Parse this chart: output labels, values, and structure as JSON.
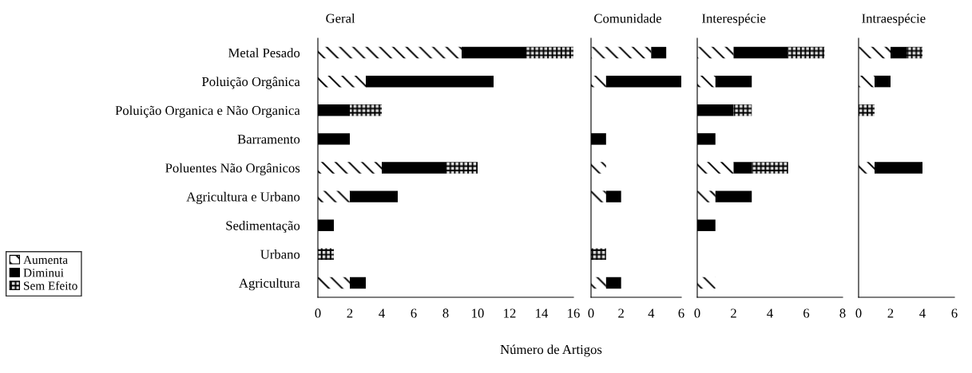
{
  "chart_data": [
    {
      "type": "bar",
      "orientation": "horizontal",
      "stacked": true,
      "title": "Geral",
      "xlabel": "Número de Artigos",
      "legend": "bottom left",
      "categories": [
        "Metal Pesado",
        "Poluição Orgânica",
        "Poluição Organica e Não Organica",
        "Barramento",
        "Poluentes Não Orgânicos",
        "Agricultura e Urbano",
        "Sedimentação",
        "Urbano",
        "Agricultura"
      ],
      "series": [
        {
          "name": "Aumenta",
          "color": "#ffffff",
          "values": [
            9,
            3,
            null,
            null,
            4,
            2,
            null,
            null,
            2
          ]
        },
        {
          "name": "Diminui",
          "color": "#000000",
          "values": [
            4,
            8,
            2,
            2,
            4,
            3,
            1,
            null,
            1
          ]
        },
        {
          "name": "Sem Efeito",
          "color": "#e0e0e0",
          "values": [
            3,
            null,
            2,
            null,
            2,
            null,
            null,
            1,
            null
          ]
        }
      ],
      "xlim": [
        0,
        16
      ],
      "xticks": [
        0,
        2,
        4,
        6,
        8,
        10,
        12,
        14,
        16
      ]
    },
    {
      "type": "bar",
      "orientation": "horizontal",
      "stacked": true,
      "title": "Comunidade",
      "tick_labels": "x",
      "categories": [
        null,
        null,
        null,
        null,
        null,
        null,
        null,
        null,
        null
      ],
      "series": [
        {
          "color": "#ffffff",
          "values": [
            4,
            1,
            null,
            null,
            1,
            1,
            null,
            null,
            1
          ]
        },
        {
          "color": "#000000",
          "values": [
            1,
            5,
            null,
            1,
            null,
            1,
            null,
            null,
            1
          ]
        },
        {
          "color": "#e0e0e0",
          "values": [
            null,
            null,
            null,
            null,
            null,
            null,
            null,
            1,
            null
          ]
        }
      ],
      "xlim": [
        0,
        6
      ],
      "xticks": [
        0,
        2,
        4,
        6
      ]
    },
    {
      "type": "bar",
      "orientation": "horizontal",
      "stacked": true,
      "title": "Interespécie",
      "tick_labels": "x",
      "categories": [
        null,
        null,
        null,
        null,
        null,
        null,
        null,
        null,
        null
      ],
      "series": [
        {
          "color": "#ffffff",
          "values": [
            2,
            1,
            null,
            null,
            2,
            1,
            null,
            null,
            1
          ]
        },
        {
          "color": "#000000",
          "values": [
            3,
            2,
            2,
            1,
            1,
            2,
            1,
            null,
            null
          ]
        },
        {
          "color": "#e0e0e0",
          "values": [
            2,
            null,
            1,
            null,
            2,
            null,
            null,
            null,
            null
          ]
        }
      ],
      "xlim": [
        0,
        8
      ],
      "xticks": [
        0,
        2,
        4,
        6,
        8
      ]
    },
    {
      "type": "bar",
      "orientation": "horizontal",
      "stacked": true,
      "title": "Intraespécie",
      "tick_labels": "x",
      "categories": [
        null,
        null,
        null,
        null,
        null,
        null,
        null,
        null,
        null
      ],
      "series": [
        {
          "color": "#ffffff",
          "values": [
            2,
            1,
            null,
            null,
            1,
            null,
            null,
            null,
            null
          ]
        },
        {
          "color": "#000000",
          "values": [
            1,
            1,
            null,
            null,
            3,
            null,
            null,
            null,
            null
          ]
        },
        {
          "color": "#e0e0e0",
          "values": [
            1,
            null,
            1,
            null,
            null,
            null,
            null,
            null,
            null
          ]
        }
      ],
      "xlim": [
        0,
        6
      ],
      "xticks": [
        0,
        2,
        4,
        6
      ]
    }
  ]
}
